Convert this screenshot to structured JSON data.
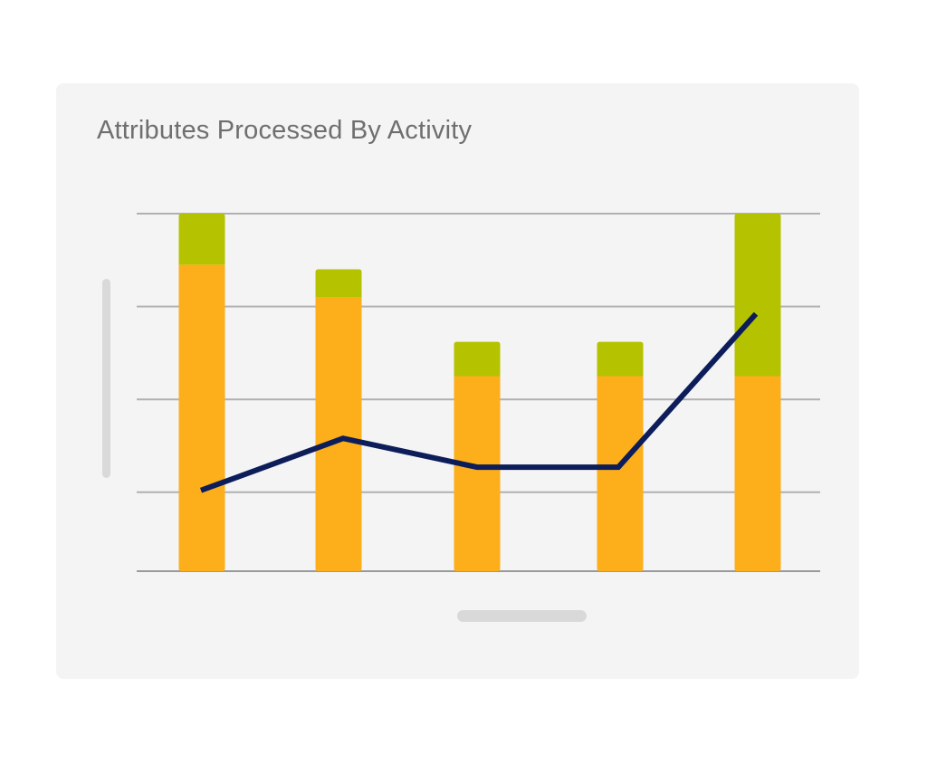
{
  "card": {
    "title": "Attributes Processed By Activity"
  },
  "colors": {
    "card_bg": "#f4f4f4",
    "title": "#6f6f6f",
    "grid": "#b0b0b0",
    "axis": "#9a9a9a",
    "bottom_segment": "#fcae1b",
    "top_segment": "#b5c200",
    "line": "#0c1d5a",
    "scrollbar": "#d9d9d9"
  },
  "chart_data": {
    "type": "bar",
    "stacked": true,
    "title": "Attributes Processed By Activity",
    "xlabel": "",
    "ylabel": "",
    "categories": [
      "",
      "",
      "",
      "",
      ""
    ],
    "ylim": [
      0,
      3.85
    ],
    "gridlines": [
      0,
      0.85,
      1.85,
      2.85,
      3.85
    ],
    "grid": true,
    "series": [
      {
        "kind": "bar",
        "color": "#fcae1b",
        "values": [
          3.3,
          2.95,
          2.1,
          2.1,
          2.1
        ]
      },
      {
        "kind": "bar",
        "color": "#b5c200",
        "values": [
          0.55,
          0.3,
          0.37,
          0.37,
          1.75
        ]
      },
      {
        "kind": "line",
        "color": "#0c1d5a",
        "values": [
          0.87,
          1.43,
          1.12,
          1.12,
          2.77
        ]
      }
    ]
  }
}
